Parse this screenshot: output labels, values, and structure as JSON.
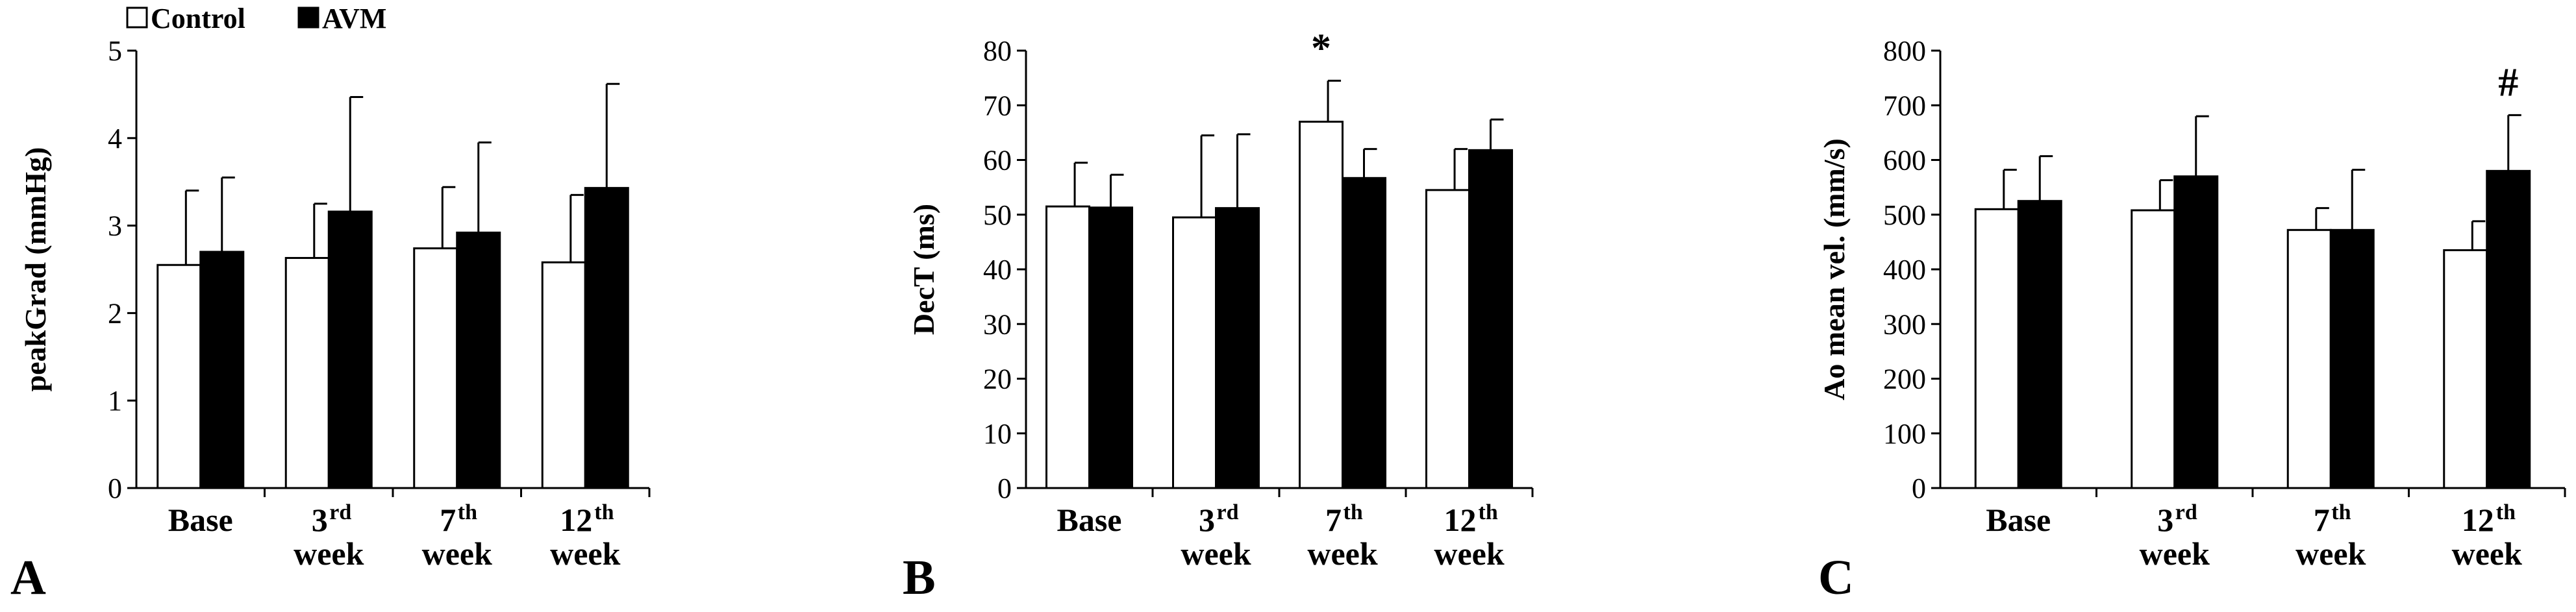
{
  "legend": {
    "control_label": "Control",
    "avm_label": "AVM"
  },
  "colors": {
    "control_fill": "#ffffff",
    "avm_fill": "#000000",
    "axis": "#000000",
    "divider": "#bfbfbf"
  },
  "chart_data": [
    {
      "type": "bar",
      "panel_label": "A",
      "ylabel": "peakGrad (mmHg)",
      "ylim": [
        0,
        5
      ],
      "yticks": [
        0,
        1,
        2,
        3,
        4,
        5
      ],
      "categories": [
        {
          "base": "Base",
          "sup": "",
          "sub": ""
        },
        {
          "base": "3",
          "sup": "rd",
          "sub": "week"
        },
        {
          "base": "7",
          "sup": "th",
          "sub": "week"
        },
        {
          "base": "12",
          "sup": "th",
          "sub": "week"
        }
      ],
      "series": [
        {
          "name": "Control",
          "values": [
            2.55,
            2.63,
            2.74,
            2.58
          ],
          "errors": [
            0.85,
            0.62,
            0.7,
            0.77
          ]
        },
        {
          "name": "AVM",
          "values": [
            2.7,
            3.16,
            2.92,
            3.43
          ],
          "errors": [
            0.85,
            1.31,
            1.03,
            1.19
          ]
        }
      ],
      "annotations": []
    },
    {
      "type": "bar",
      "panel_label": "B",
      "ylabel": "DecT (ms)",
      "ylim": [
        0,
        80
      ],
      "yticks": [
        0,
        10,
        20,
        30,
        40,
        50,
        60,
        70,
        80
      ],
      "categories": [
        {
          "base": "Base",
          "sup": "",
          "sub": ""
        },
        {
          "base": "3",
          "sup": "rd",
          "sub": "week"
        },
        {
          "base": "7",
          "sup": "th",
          "sub": "week"
        },
        {
          "base": "12",
          "sup": "th",
          "sub": "week"
        }
      ],
      "series": [
        {
          "name": "Control",
          "values": [
            51.5,
            49.5,
            67.0,
            54.5
          ],
          "errors": [
            8.0,
            15.0,
            7.5,
            7.5
          ]
        },
        {
          "name": "AVM",
          "values": [
            51.3,
            51.2,
            56.7,
            61.8
          ],
          "errors": [
            6.0,
            13.5,
            5.3,
            5.6
          ]
        }
      ],
      "annotations": [
        {
          "text": "*",
          "category_index": 2,
          "series": "Control"
        }
      ]
    },
    {
      "type": "bar",
      "panel_label": "C",
      "ylabel": "Ao mean vel. (mm/s)",
      "ylim": [
        0,
        800
      ],
      "yticks": [
        0,
        100,
        200,
        300,
        400,
        500,
        600,
        700,
        800
      ],
      "categories": [
        {
          "base": "Base",
          "sup": "",
          "sub": ""
        },
        {
          "base": "3",
          "sup": "rd",
          "sub": "week"
        },
        {
          "base": "7",
          "sup": "th",
          "sub": "week"
        },
        {
          "base": "12",
          "sup": "th",
          "sub": "week"
        }
      ],
      "series": [
        {
          "name": "Control",
          "values": [
            510,
            508,
            472,
            435
          ],
          "errors": [
            72,
            55,
            40,
            53
          ]
        },
        {
          "name": "AVM",
          "values": [
            525,
            570,
            472,
            580
          ],
          "errors": [
            82,
            110,
            110,
            102
          ]
        }
      ],
      "annotations": [
        {
          "text": "#",
          "category_index": 3,
          "series": "AVM"
        }
      ]
    }
  ]
}
